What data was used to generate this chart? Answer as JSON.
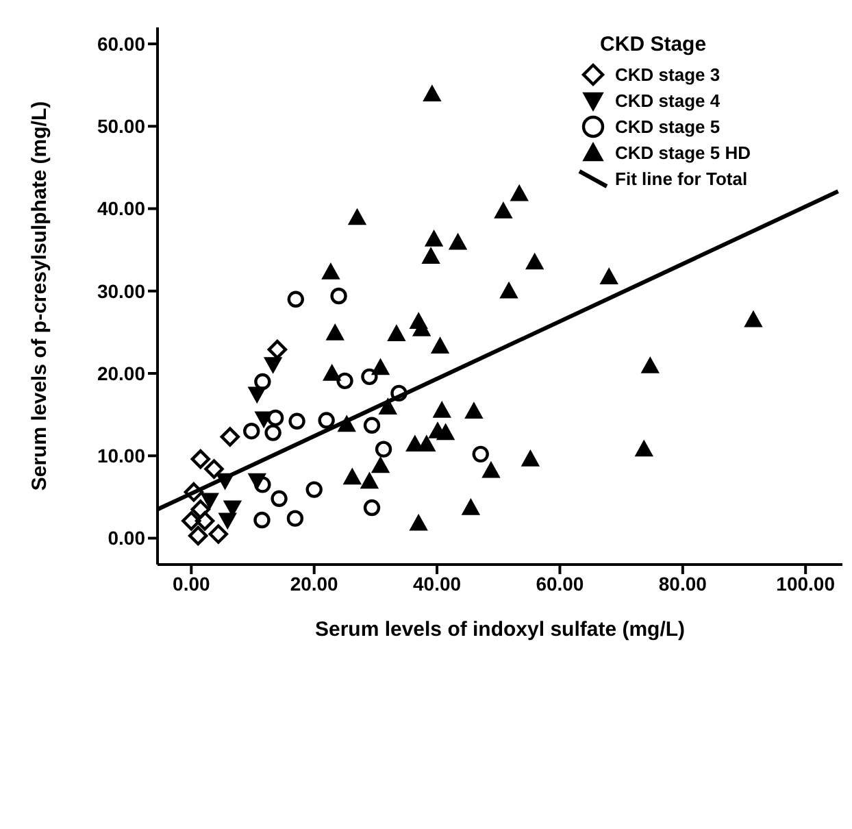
{
  "chart_data": {
    "type": "scatter",
    "xlabel": "Serum levels of indoxyl sulfate (mg/L)",
    "ylabel": "Serum levels of p-cresylsulphate (mg/L)",
    "legend_title": "CKD Stage",
    "legend": "top right",
    "grid": false,
    "xlim": [
      -5.5,
      106
    ],
    "ylim": [
      -3.2,
      62
    ],
    "xticks": [
      {
        "value": 0,
        "label": "0.00"
      },
      {
        "value": 20,
        "label": "20.00"
      },
      {
        "value": 40,
        "label": "40.00"
      },
      {
        "value": 60,
        "label": "60.00"
      },
      {
        "value": 80,
        "label": "80.00"
      },
      {
        "value": 100,
        "label": "100.00"
      }
    ],
    "yticks": [
      {
        "value": 0,
        "label": "0.00"
      },
      {
        "value": 10,
        "label": "10.00"
      },
      {
        "value": 20,
        "label": "20.00"
      },
      {
        "value": 30,
        "label": "30.00"
      },
      {
        "value": 40,
        "label": "40.00"
      },
      {
        "value": 50,
        "label": "50.00"
      },
      {
        "value": 60,
        "label": "60.00"
      }
    ],
    "series": [
      {
        "name": "CKD stage 3",
        "color": "#000000",
        "marker": "diamond",
        "x": [
          14.0,
          6.3,
          1.5,
          3.7,
          0.4,
          1.5,
          2.2,
          0,
          1.1,
          4.4
        ],
        "values": [
          22.9,
          12.3,
          9.6,
          8.4,
          5.6,
          3.5,
          2.1,
          2.1,
          0.3,
          0.5
        ]
      },
      {
        "name": "CKD stage 4",
        "color": "#000000",
        "marker": "triangle-down",
        "x": [
          13.3,
          10.7,
          11.8,
          10.7,
          5.5,
          6.7,
          5.9,
          3.0
        ],
        "values": [
          21.1,
          17.5,
          14.5,
          7.0,
          7.0,
          3.7,
          2.2,
          4.6
        ]
      },
      {
        "name": "CKD stage 5",
        "color": "#000000",
        "marker": "circle",
        "x": [
          11.6,
          13.7,
          17.2,
          22.0,
          9.8,
          13.3,
          11.6,
          14.3,
          20.0,
          11.5,
          16.9,
          17.0,
          24.0,
          25.0,
          29.0,
          33.8,
          29.4,
          31.3,
          47.1,
          29.4
        ],
        "values": [
          19.0,
          14.6,
          14.2,
          14.3,
          13.0,
          12.8,
          6.5,
          4.8,
          5.9,
          2.2,
          2.4,
          29.0,
          29.4,
          19.1,
          19.6,
          17.6,
          13.7,
          10.8,
          10.2,
          3.7
        ]
      },
      {
        "name": "CKD stage 5 HD",
        "color": "#000000",
        "marker": "triangle",
        "x": [
          27.0,
          22.7,
          23.4,
          33.4,
          30.8,
          39.2,
          53.4,
          50.8,
          39.5,
          43.4,
          39.0,
          55.9,
          68.0,
          51.7,
          37.0,
          37.5,
          40.5,
          91.5,
          74.7,
          22.9,
          32.0,
          40.8,
          46.0,
          25.3,
          40.1,
          41.4,
          36.4,
          38.3,
          55.2,
          73.7,
          48.8,
          30.8,
          26.2,
          29.0,
          45.5,
          37.0
        ],
        "values": [
          38.9,
          32.3,
          24.9,
          24.8,
          20.7,
          53.9,
          41.8,
          39.7,
          36.3,
          35.9,
          34.2,
          33.5,
          31.7,
          30.0,
          26.3,
          25.4,
          23.3,
          26.5,
          20.9,
          20.0,
          15.9,
          15.5,
          15.4,
          13.8,
          13.0,
          12.8,
          11.4,
          11.4,
          9.6,
          10.8,
          8.2,
          8.8,
          7.4,
          6.9,
          3.7,
          1.8
        ]
      },
      {
        "name": "Fit line for Total",
        "type": "line",
        "color": "#000000",
        "marker": "none",
        "line_style": "solid",
        "x": [
          -5.5,
          105.3
        ],
        "values": [
          3.5,
          42.1
        ]
      }
    ]
  }
}
